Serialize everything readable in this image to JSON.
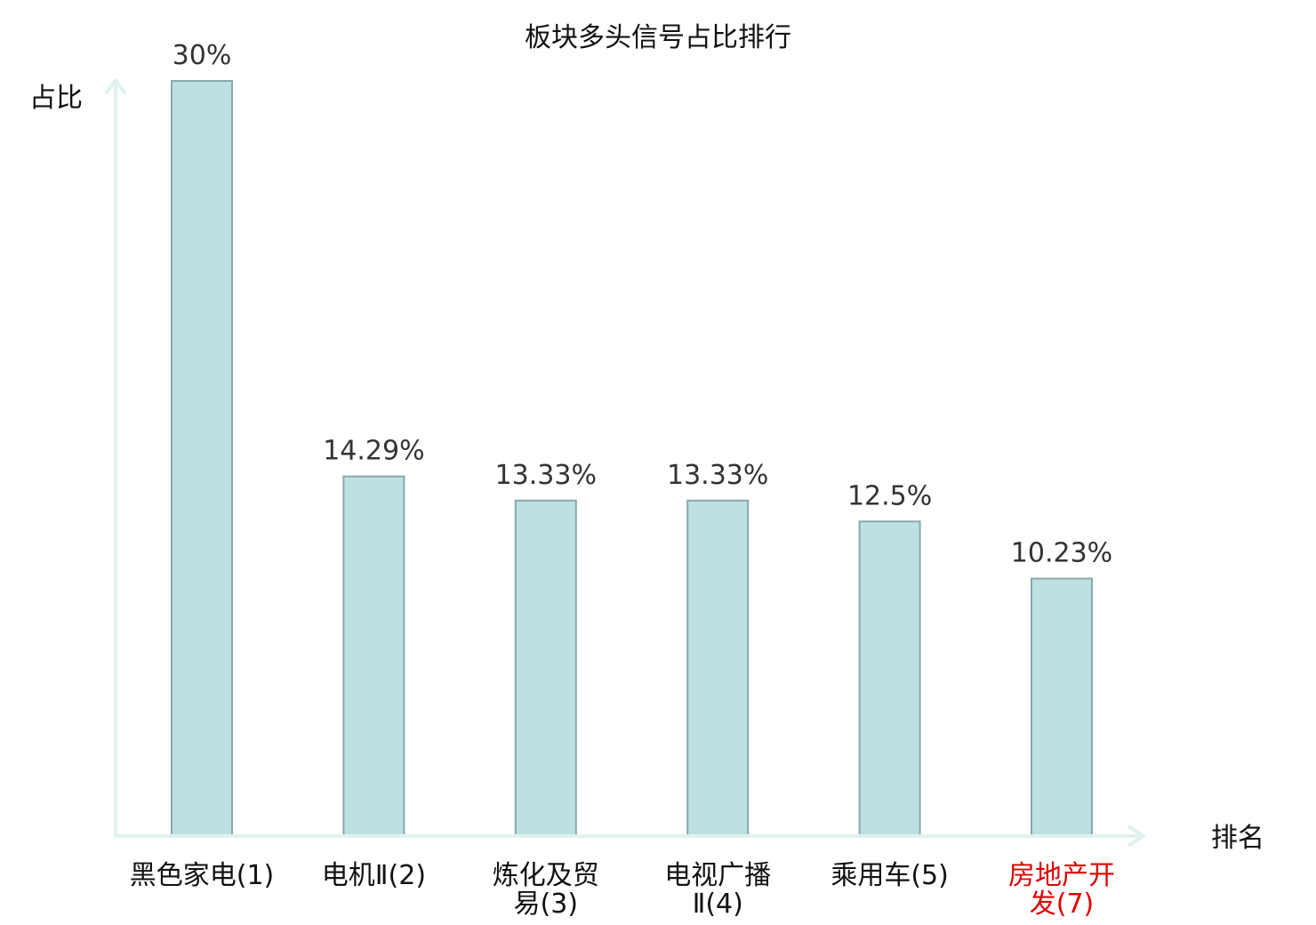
{
  "chart_data": {
    "type": "bar",
    "title": "板块多头信号占比排行",
    "xlabel": "排名",
    "ylabel": "占比",
    "categories": [
      [
        "黑色家电(1)"
      ],
      [
        "电机Ⅱ(2)"
      ],
      [
        "炼化及贸",
        "易(3)"
      ],
      [
        "电视广播",
        "Ⅱ(4)"
      ],
      [
        "乘用车(5)"
      ],
      [
        "房地产开",
        "发(7)"
      ]
    ],
    "values": [
      30,
      14.29,
      13.33,
      13.33,
      12.5,
      10.23
    ],
    "value_labels": [
      "30%",
      "14.29%",
      "13.33%",
      "13.33%",
      "12.5%",
      "10.23%"
    ],
    "highlight_index": 5,
    "colors": {
      "bar_fill": "#bde0e2",
      "bar_stroke": "#8aa8aa",
      "axis": "#dff2ef",
      "highlight_text": "#e00000"
    },
    "ylim": [
      0,
      30
    ],
    "grid": false
  }
}
